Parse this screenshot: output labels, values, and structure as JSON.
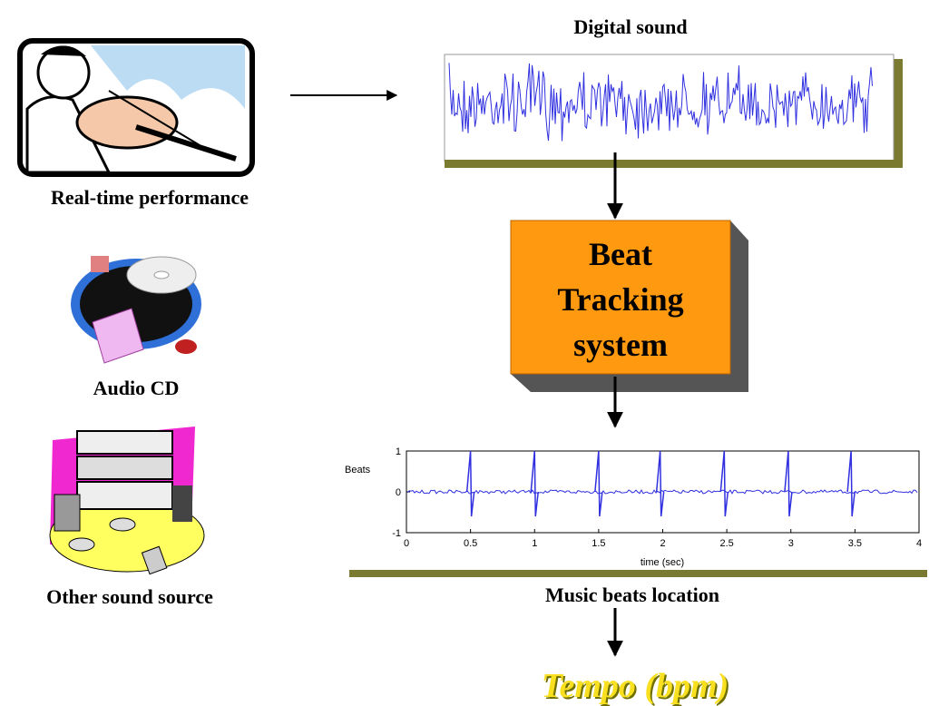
{
  "sources": [
    {
      "label": "Real-time performance"
    },
    {
      "label": "Audio CD"
    },
    {
      "label": "Other sound source"
    }
  ],
  "digital_sound": {
    "title": "Digital sound"
  },
  "system": {
    "lines": [
      "Beat",
      "Tracking",
      "system"
    ]
  },
  "beats_plot": {
    "title": "Music beats location",
    "ylabel": "Beats",
    "xlabel": "time (sec)",
    "xlim": [
      0,
      4
    ],
    "ylim": [
      -1,
      1
    ],
    "xticks": [
      0,
      0.5,
      1,
      1.5,
      2,
      2.5,
      3,
      3.5,
      4
    ],
    "yticks": [
      -1,
      0,
      1
    ],
    "beats": [
      0.5,
      1,
      1.5,
      1.98,
      2.48,
      2.98,
      3.47
    ]
  },
  "output": {
    "label": "Tempo (bpm)"
  }
}
